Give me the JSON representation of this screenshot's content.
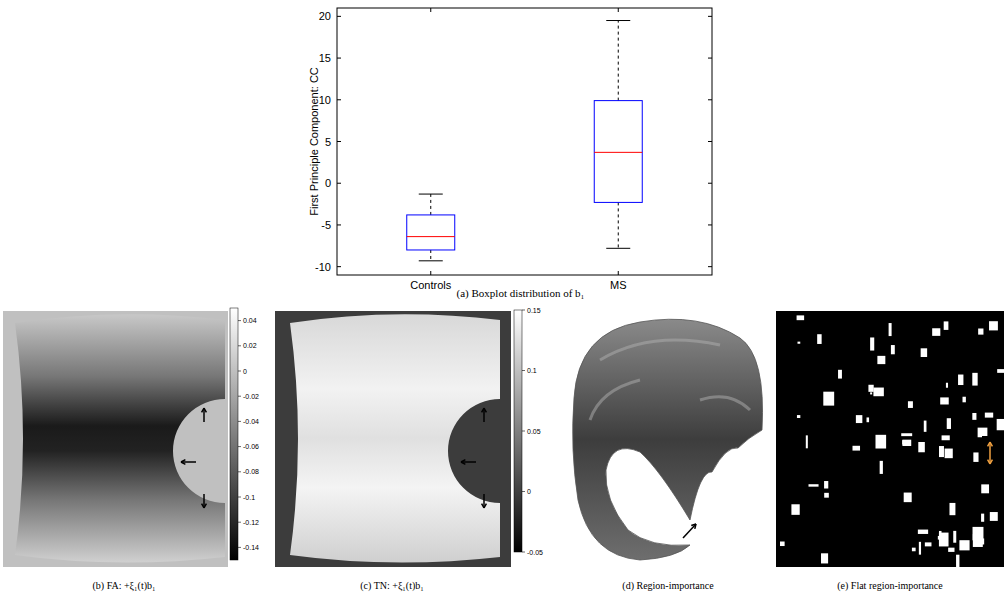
{
  "chart_data": {
    "type": "box",
    "title": "(a) Boxplot distribution of b₁",
    "ylabel": "First Principle Component: CC",
    "categories": [
      "Controls",
      "MS"
    ],
    "min": [
      -9.3,
      -7.8
    ],
    "q1": [
      -8.0,
      -2.3
    ],
    "median": [
      -6.4,
      3.7
    ],
    "q3": [
      -3.8,
      9.9
    ],
    "max": [
      -1.3,
      19.5
    ],
    "color": "#0000ff",
    "ylim": [
      -11,
      21
    ],
    "yticks": [
      -10,
      -5,
      0,
      5,
      10,
      15,
      20
    ],
    "grid": false
  },
  "panels": [
    {
      "caption": "(b) FA: +ξ₁(t)b₁",
      "colorbar": {
        "range": [
          -0.15,
          0.05
        ],
        "ticks": [
          0.04,
          0.02,
          0,
          -0.02,
          -0.04,
          -0.06,
          -0.08,
          -0.1,
          -0.12,
          -0.14
        ]
      }
    },
    {
      "caption": "(c) TN: +ξ₁(t)b₁",
      "colorbar": {
        "range": [
          -0.05,
          0.15
        ],
        "ticks": [
          0.15,
          0.1,
          0.05,
          0,
          -0.05
        ]
      }
    },
    {
      "caption": "(d) Region-importance"
    },
    {
      "caption": "(e) Flat region-importance"
    }
  ]
}
